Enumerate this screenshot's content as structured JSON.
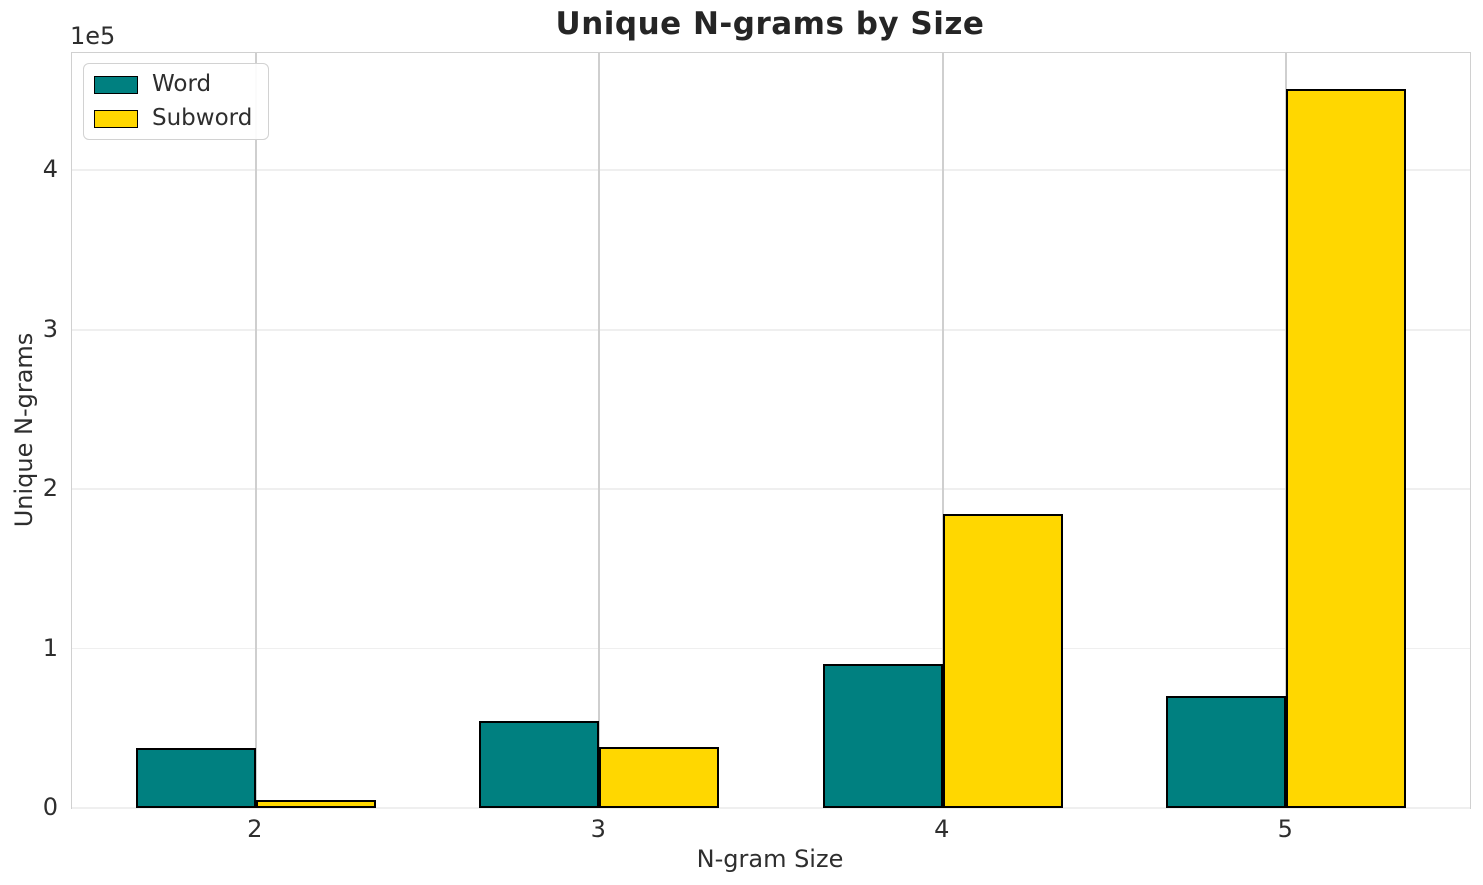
{
  "chart_data": {
    "type": "bar",
    "title": "Unique N-grams by Size",
    "xlabel": "N-gram Size",
    "ylabel": "Unique N-grams",
    "y_offset_text": "1e5",
    "categories": [
      "2",
      "3",
      "4",
      "5"
    ],
    "x_values": [
      2,
      3,
      4,
      5
    ],
    "series": [
      {
        "name": "Word",
        "color": "#008080",
        "edge_color": "#000000",
        "values": [
          37500,
          54500,
          90500,
          70000
        ]
      },
      {
        "name": "Subword",
        "color": "#ffd700",
        "edge_color": "#000000",
        "values": [
          5000,
          38500,
          184500,
          451000
        ]
      }
    ],
    "bar_width_units": 0.35,
    "xlim": [
      1.465,
      5.535
    ],
    "ylim": [
      0,
      473550
    ],
    "yticks": [
      {
        "value": 0,
        "label": "0"
      },
      {
        "value": 100000,
        "label": "1"
      },
      {
        "value": 200000,
        "label": "2"
      },
      {
        "value": 300000,
        "label": "3"
      },
      {
        "value": 400000,
        "label": "4"
      }
    ],
    "grid": true,
    "legend_position": "upper left"
  },
  "colors": {
    "grid_horizontal": "#efefef",
    "grid_vertical": "#cfcfcf",
    "spine": "#d0d0d0",
    "text": "#2e2e2e"
  }
}
